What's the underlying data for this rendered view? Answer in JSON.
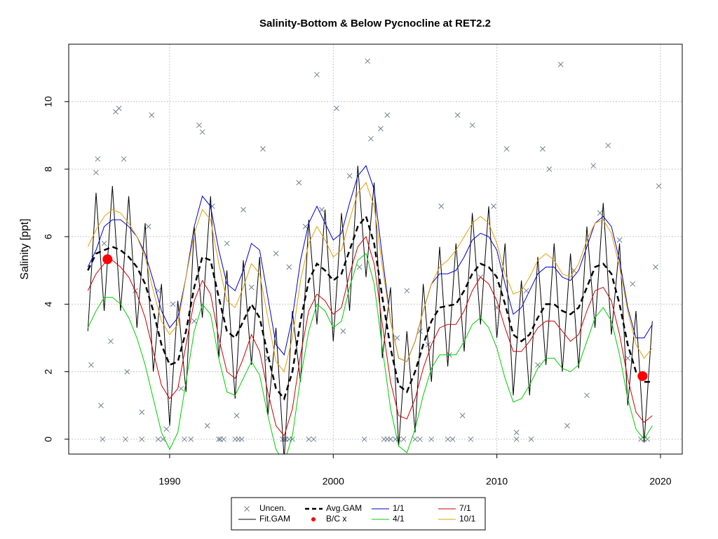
{
  "chart_data": {
    "type": "line",
    "title": "Salinity-Bottom & Below Pycnocline at RET2.2",
    "y_label": "Salinity [ppt]",
    "xlim": [
      1983.83,
      2021.33
    ],
    "ylim": [
      -0.44,
      11.7
    ],
    "xticks": [
      1990,
      2000,
      2010,
      2020
    ],
    "yticks": [
      0,
      2,
      4,
      6,
      8,
      10
    ],
    "grid": true,
    "legend": "bottom",
    "x": [
      1985,
      1985.5,
      1986,
      1986.5,
      1987,
      1987.5,
      1988,
      1988.5,
      1989,
      1989.5,
      1990,
      1990.5,
      1991,
      1991.5,
      1992,
      1992.5,
      1993,
      1993.5,
      1994,
      1994.5,
      1995,
      1995.5,
      1996,
      1996.5,
      1997,
      1997.5,
      1998,
      1998.5,
      1999,
      1999.5,
      2000,
      2000.5,
      2001,
      2001.5,
      2002,
      2002.5,
      2003,
      2003.5,
      2004,
      2004.5,
      2005,
      2005.5,
      2006,
      2006.5,
      2007,
      2007.5,
      2008,
      2008.5,
      2009,
      2009.5,
      2010,
      2010.5,
      2011,
      2011.5,
      2012,
      2012.5,
      2013,
      2013.5,
      2014,
      2014.5,
      2015,
      2015.5,
      2016,
      2016.5,
      2017,
      2017.5,
      2018,
      2018.5,
      2019,
      2019.5
    ],
    "censored": {
      "color": "#708090",
      "x": [
        1985.9,
        1987.3,
        1988.3,
        1989.3,
        1989.6,
        1990.9,
        1991.3,
        1993.0,
        1993.1,
        1993.3,
        1994.0,
        1994.2,
        1994.4,
        1996.9,
        1997.0,
        1997.1,
        1997.3,
        1997.5,
        1998.5,
        1998.8,
        2001.9,
        2003.1,
        2003.3,
        2003.5,
        2003.8,
        2004.0,
        2004.3,
        2005.0,
        2005.3,
        2006.0,
        2007.0,
        2007.3,
        2008.4,
        2011.2,
        2012.1,
        2018.8,
        2019.0,
        2019.2
      ],
      "values": [
        0,
        0,
        0,
        0,
        0,
        0,
        0,
        0,
        0,
        0,
        0,
        0,
        0,
        0,
        0,
        0,
        0,
        0,
        0,
        0,
        0,
        0,
        0,
        0,
        0,
        0,
        0,
        0,
        0,
        0,
        0,
        0,
        0,
        0,
        0,
        0,
        0,
        0
      ]
    },
    "series": [
      {
        "name": "Uncen.",
        "style": "points",
        "color": "#708090",
        "x": [
          1985.2,
          1985.5,
          1985.6,
          1985.8,
          1986.0,
          1986.4,
          1986.7,
          1986.9,
          1987.2,
          1987.4,
          1987.9,
          1988.3,
          1988.7,
          1988.9,
          1989.3,
          1989.8,
          1990.2,
          1990.7,
          1991.5,
          1991.8,
          1992.0,
          1992.3,
          1992.6,
          1993.5,
          1994.1,
          1994.5,
          1995.0,
          1995.7,
          1996.0,
          1996.5,
          1997.3,
          1997.9,
          1998.3,
          1999.0,
          1999.3,
          2000.2,
          2000.6,
          2001.0,
          2001.6,
          2002.1,
          2002.3,
          2002.9,
          2003.3,
          2003.9,
          2004.5,
          2005.3,
          2005.8,
          2006.6,
          2007.1,
          2007.6,
          2007.9,
          2008.5,
          2009.0,
          2009.8,
          2010.0,
          2010.6,
          2011.2,
          2011.8,
          2012.5,
          2012.8,
          2013.2,
          2013.9,
          2014.3,
          2014.7,
          2015.5,
          2015.9,
          2016.3,
          2016.8,
          2017.5,
          2018.0,
          2018.3,
          2019.7,
          2019.9
        ],
        "values": [
          2.2,
          7.9,
          8.3,
          1.0,
          5.8,
          2.9,
          9.7,
          9.8,
          8.3,
          2.0,
          4.4,
          0.8,
          6.3,
          9.6,
          4.4,
          0.3,
          4.0,
          1.5,
          3.5,
          9.3,
          9.1,
          0.4,
          6.9,
          5.8,
          0.7,
          6.8,
          4.5,
          8.6,
          2.4,
          5.5,
          5.1,
          7.6,
          6.3,
          10.8,
          6.8,
          9.8,
          3.2,
          7.8,
          5.1,
          11.2,
          8.9,
          9.2,
          9.6,
          3.0,
          4.4,
          3.2,
          2.8,
          6.9,
          2.5,
          9.6,
          0.7,
          9.3,
          4.8,
          6.9,
          3.9,
          8.6,
          0.2,
          4.4,
          2.2,
          8.6,
          8.0,
          11.1,
          0.4,
          5.0,
          1.3,
          8.1,
          6.7,
          8.7,
          5.9,
          2.4,
          4.6,
          5.1,
          7.5
        ]
      },
      {
        "name": "Fit.GAM",
        "style": "line",
        "color": "#000000",
        "values": [
          3.2,
          7.3,
          3.8,
          7.5,
          3.8,
          7.2,
          3.3,
          6.4,
          2.0,
          4.6,
          0.4,
          4.1,
          1.4,
          6.3,
          3.6,
          7.2,
          2.4,
          5.0,
          1.2,
          5.3,
          2.2,
          5.4,
          0.7,
          3.3,
          -0.6,
          3.8,
          1.7,
          6.5,
          3.4,
          6.8,
          2.9,
          6.7,
          3.8,
          8.1,
          4.8,
          7.6,
          2.4,
          4.5,
          -0.2,
          3.2,
          0.2,
          4.6,
          1.7,
          5.7,
          2.15,
          5.8,
          2.6,
          6.7,
          3.4,
          6.9,
          3.0,
          5.8,
          1.3,
          4.7,
          1.3,
          5.4,
          2.2,
          5.8,
          2.0,
          5.5,
          2.1,
          6.3,
          3.3,
          7.0,
          3.1,
          5.8,
          1.0,
          3.8,
          -0.1,
          3.5
        ]
      },
      {
        "name": "Avg.GAM",
        "style": "dashed",
        "color": "#000000",
        "values": [
          5.0,
          5.5,
          5.6,
          5.7,
          5.6,
          5.4,
          5.1,
          4.6,
          3.8,
          2.8,
          2.2,
          2.3,
          3.2,
          4.5,
          5.4,
          5.3,
          4.2,
          3.2,
          3.0,
          3.5,
          4.0,
          3.6,
          2.5,
          1.5,
          1.2,
          2.0,
          3.5,
          4.7,
          5.2,
          5.0,
          4.7,
          4.9,
          5.6,
          6.3,
          6.6,
          5.8,
          4.2,
          2.7,
          1.6,
          1.4,
          2.0,
          2.8,
          3.5,
          3.9,
          3.95,
          4.0,
          4.4,
          4.9,
          5.2,
          5.1,
          4.8,
          4.0,
          3.1,
          2.9,
          3.1,
          3.6,
          4.0,
          4.0,
          3.8,
          3.7,
          3.9,
          4.5,
          5.1,
          5.2,
          4.9,
          4.0,
          2.8,
          2.0,
          1.7,
          1.7
        ]
      },
      {
        "name": "B/C x",
        "style": "dots",
        "color": "#ff0000",
        "x": [
          1986.2,
          2018.9
        ],
        "values": [
          5.33,
          1.87
        ]
      },
      {
        "name": "1/1",
        "style": "line",
        "color": "#0000cd",
        "values": [
          5.1,
          5.6,
          6.3,
          6.5,
          6.5,
          6.3,
          6.0,
          5.5,
          4.7,
          3.8,
          3.3,
          3.6,
          4.8,
          6.3,
          7.2,
          6.9,
          5.6,
          4.6,
          4.4,
          5.0,
          5.8,
          5.6,
          4.2,
          2.8,
          2.5,
          3.6,
          5.3,
          6.4,
          6.9,
          6.4,
          5.9,
          6.1,
          7.0,
          7.8,
          8.1,
          7.4,
          5.4,
          3.5,
          2.4,
          2.3,
          2.9,
          3.8,
          4.6,
          4.9,
          4.9,
          5.0,
          5.4,
          5.9,
          6.1,
          6.0,
          5.6,
          4.6,
          3.7,
          3.9,
          4.4,
          4.9,
          5.1,
          5.1,
          4.8,
          4.7,
          5.0,
          5.7,
          6.4,
          6.6,
          6.3,
          5.3,
          3.9,
          3.0,
          3.0,
          3.4
        ]
      },
      {
        "name": "4/1",
        "style": "line",
        "color": "#00cd00",
        "values": [
          3.3,
          3.8,
          4.2,
          4.2,
          4.0,
          3.6,
          3.0,
          2.2,
          1.2,
          0.2,
          -0.3,
          0.2,
          1.7,
          3.2,
          4.0,
          3.7,
          2.4,
          1.4,
          1.3,
          1.8,
          2.3,
          1.9,
          0.7,
          -0.3,
          -0.7,
          0.1,
          1.8,
          3.2,
          4.0,
          3.8,
          3.3,
          3.5,
          4.5,
          5.3,
          5.5,
          4.6,
          2.7,
          0.9,
          -0.2,
          -0.4,
          0.3,
          1.3,
          2.1,
          2.5,
          2.5,
          2.5,
          2.9,
          3.4,
          3.6,
          3.3,
          2.7,
          1.8,
          1.1,
          1.2,
          1.6,
          2.1,
          2.4,
          2.4,
          2.1,
          2.0,
          2.2,
          2.9,
          3.6,
          3.9,
          3.5,
          2.5,
          1.2,
          0.3,
          0.0,
          0.4
        ]
      },
      {
        "name": "7/1",
        "style": "line",
        "color": "#cd0000",
        "values": [
          4.4,
          4.9,
          5.2,
          5.3,
          5.1,
          4.8,
          4.3,
          3.6,
          2.6,
          1.6,
          1.2,
          1.5,
          2.8,
          4.1,
          4.7,
          4.3,
          3.0,
          2.0,
          1.8,
          2.4,
          3.1,
          2.6,
          1.4,
          0.4,
          0.1,
          0.9,
          2.5,
          3.8,
          4.3,
          4.1,
          3.7,
          3.9,
          4.9,
          5.7,
          6.0,
          5.2,
          3.4,
          1.7,
          0.7,
          0.6,
          1.2,
          2.1,
          2.8,
          3.3,
          3.4,
          3.4,
          3.8,
          4.4,
          4.8,
          4.6,
          4.1,
          3.3,
          2.6,
          2.6,
          2.9,
          3.3,
          3.5,
          3.5,
          3.2,
          2.9,
          3.1,
          3.8,
          4.4,
          4.5,
          4.1,
          3.1,
          1.8,
          0.8,
          0.5,
          0.7
        ]
      },
      {
        "name": "10/1",
        "style": "line",
        "color": "#e69f00",
        "values": [
          5.7,
          6.2,
          6.6,
          6.8,
          6.7,
          6.4,
          6.0,
          5.4,
          4.4,
          3.5,
          3.1,
          3.4,
          4.8,
          6.1,
          6.8,
          6.5,
          5.2,
          4.1,
          3.9,
          4.5,
          5.2,
          4.9,
          3.6,
          2.3,
          2.0,
          3.0,
          4.7,
          5.8,
          6.3,
          5.9,
          5.4,
          5.6,
          6.5,
          7.3,
          7.6,
          6.9,
          5.1,
          3.5,
          2.4,
          2.3,
          2.9,
          3.8,
          4.6,
          5.1,
          5.3,
          5.6,
          6.0,
          6.4,
          6.6,
          6.4,
          5.8,
          4.9,
          4.3,
          4.4,
          4.8,
          5.3,
          5.5,
          5.3,
          4.9,
          4.8,
          5.2,
          5.9,
          6.4,
          6.5,
          6.1,
          5.1,
          3.8,
          2.8,
          2.4,
          2.7
        ]
      }
    ]
  }
}
